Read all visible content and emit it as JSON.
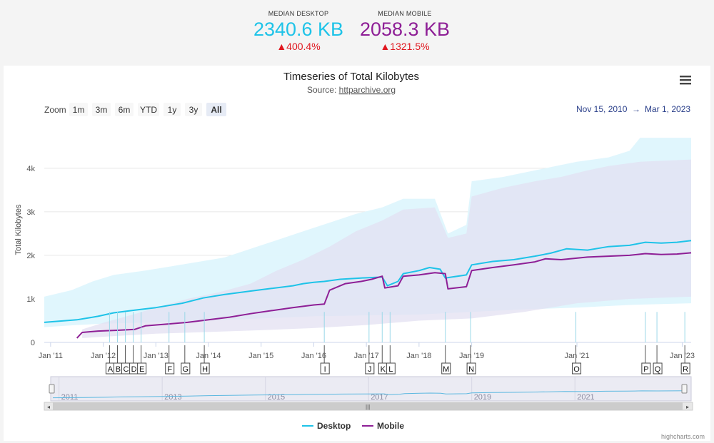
{
  "summary": {
    "desktop": {
      "label": "MEDIAN DESKTOP",
      "value": "2340.6 KB",
      "change": "▲400.4%"
    },
    "mobile": {
      "label": "MEDIAN MOBILE",
      "value": "2058.3 KB",
      "change": "▲1321.5%"
    }
  },
  "toolbar": {
    "zoom_label": "Zoom",
    "zoom_buttons": [
      "1m",
      "3m",
      "6m",
      "YTD",
      "1y",
      "3y",
      "All"
    ],
    "selected": "All",
    "from_date": "Nov 15, 2010",
    "arrow": "→",
    "to_date": "Mar 1, 2023",
    "menu_icon": "hamburger-menu-icon"
  },
  "credit": "highcharts.com",
  "colors": {
    "desktop": "#1ec3e8",
    "mobile": "#8e1f96",
    "desktop_band": "#def6fd",
    "mobile_band": "#e3e0f1",
    "accent": "#2a3f8a"
  },
  "chart_data": {
    "type": "line",
    "title": "Timeseries of Total Kilobytes",
    "subtitle_prefix": "Source: ",
    "subtitle_link": "httparchive.org",
    "ylabel": "Total Kilobytes",
    "ylim": [
      0,
      4800
    ],
    "yticks": [
      0,
      1000,
      2000,
      3000,
      4000
    ],
    "ytick_labels": [
      "0",
      "1k",
      "2k",
      "3k",
      "4k"
    ],
    "xlim": [
      2010.88,
      2023.17
    ],
    "xticks": [
      2011,
      2012,
      2013,
      2014,
      2015,
      2016,
      2017,
      2018,
      2019,
      2021,
      2023
    ],
    "xtick_labels": [
      "Jan '11",
      "Jan '12",
      "Jan '13",
      "Jan '14",
      "Jan '15",
      "Jan '16",
      "Jan '17",
      "Jan '18",
      "Jan '19",
      "Jan '21",
      "Jan '23"
    ],
    "navigator_years": [
      "2011",
      "2013",
      "2015",
      "2017",
      "2019",
      "2021"
    ],
    "series": [
      {
        "name": "Desktop",
        "points": [
          [
            2010.88,
            460
          ],
          [
            2011.5,
            520
          ],
          [
            2011.9,
            600
          ],
          [
            2012.2,
            680
          ],
          [
            2012.6,
            740
          ],
          [
            2013.0,
            800
          ],
          [
            2013.5,
            900
          ],
          [
            2013.9,
            1020
          ],
          [
            2014.3,
            1100
          ],
          [
            2014.8,
            1180
          ],
          [
            2015.2,
            1240
          ],
          [
            2015.6,
            1300
          ],
          [
            2015.8,
            1350
          ],
          [
            2016.0,
            1380
          ],
          [
            2016.2,
            1400
          ],
          [
            2016.5,
            1450
          ],
          [
            2016.9,
            1480
          ],
          [
            2017.3,
            1500
          ],
          [
            2017.4,
            1300
          ],
          [
            2017.6,
            1400
          ],
          [
            2017.7,
            1580
          ],
          [
            2018.0,
            1650
          ],
          [
            2018.2,
            1720
          ],
          [
            2018.4,
            1680
          ],
          [
            2018.5,
            1480
          ],
          [
            2018.9,
            1550
          ],
          [
            2019.0,
            1780
          ],
          [
            2019.4,
            1860
          ],
          [
            2019.8,
            1900
          ],
          [
            2020.2,
            1980
          ],
          [
            2020.5,
            2050
          ],
          [
            2020.8,
            2150
          ],
          [
            2021.2,
            2120
          ],
          [
            2021.6,
            2200
          ],
          [
            2022.0,
            2230
          ],
          [
            2022.3,
            2300
          ],
          [
            2022.6,
            2280
          ],
          [
            2022.9,
            2300
          ],
          [
            2023.17,
            2340
          ]
        ]
      },
      {
        "name": "Mobile",
        "points": [
          [
            2011.5,
            100
          ],
          [
            2011.6,
            230
          ],
          [
            2011.9,
            260
          ],
          [
            2012.3,
            280
          ],
          [
            2012.6,
            300
          ],
          [
            2012.8,
            380
          ],
          [
            2013.2,
            420
          ],
          [
            2013.6,
            460
          ],
          [
            2014.0,
            520
          ],
          [
            2014.4,
            580
          ],
          [
            2014.8,
            660
          ],
          [
            2015.2,
            730
          ],
          [
            2015.6,
            800
          ],
          [
            2016.0,
            860
          ],
          [
            2016.2,
            880
          ],
          [
            2016.3,
            1200
          ],
          [
            2016.6,
            1350
          ],
          [
            2016.9,
            1400
          ],
          [
            2017.1,
            1450
          ],
          [
            2017.3,
            1520
          ],
          [
            2017.35,
            1250
          ],
          [
            2017.6,
            1300
          ],
          [
            2017.7,
            1520
          ],
          [
            2018.0,
            1550
          ],
          [
            2018.3,
            1600
          ],
          [
            2018.5,
            1580
          ],
          [
            2018.55,
            1230
          ],
          [
            2018.9,
            1280
          ],
          [
            2019.0,
            1650
          ],
          [
            2019.4,
            1720
          ],
          [
            2019.8,
            1780
          ],
          [
            2020.2,
            1850
          ],
          [
            2020.4,
            1920
          ],
          [
            2020.7,
            1900
          ],
          [
            2021.2,
            1960
          ],
          [
            2021.6,
            1980
          ],
          [
            2022.0,
            2000
          ],
          [
            2022.3,
            2040
          ],
          [
            2022.6,
            2020
          ],
          [
            2022.9,
            2030
          ],
          [
            2023.17,
            2058
          ]
        ]
      }
    ],
    "bands": [
      {
        "name": "Desktop range",
        "upper": [
          [
            2010.88,
            1050
          ],
          [
            2011.4,
            1200
          ],
          [
            2011.8,
            1400
          ],
          [
            2012.2,
            1550
          ],
          [
            2012.8,
            1650
          ],
          [
            2013.3,
            1750
          ],
          [
            2013.8,
            1850
          ],
          [
            2014.3,
            1950
          ],
          [
            2014.8,
            2150
          ],
          [
            2015.3,
            2350
          ],
          [
            2015.8,
            2550
          ],
          [
            2016.3,
            2750
          ],
          [
            2016.8,
            2950
          ],
          [
            2017.3,
            3100
          ],
          [
            2017.7,
            3300
          ],
          [
            2018.3,
            3300
          ],
          [
            2018.55,
            2500
          ],
          [
            2018.9,
            2700
          ],
          [
            2019.0,
            3700
          ],
          [
            2019.6,
            3800
          ],
          [
            2020.0,
            3900
          ],
          [
            2020.6,
            4050
          ],
          [
            2021.0,
            4150
          ],
          [
            2021.6,
            4250
          ],
          [
            2022.0,
            4400
          ],
          [
            2022.2,
            4700
          ],
          [
            2023.17,
            4700
          ]
        ],
        "lower": [
          [
            2010.88,
            350
          ],
          [
            2011.5,
            400
          ],
          [
            2012.0,
            430
          ],
          [
            2013.0,
            460
          ],
          [
            2014.0,
            500
          ],
          [
            2015.0,
            550
          ],
          [
            2016.0,
            600
          ],
          [
            2017.0,
            620
          ],
          [
            2018.0,
            640
          ],
          [
            2019.0,
            700
          ],
          [
            2020.0,
            760
          ],
          [
            2021.0,
            800
          ],
          [
            2022.0,
            860
          ],
          [
            2023.17,
            900
          ]
        ]
      },
      {
        "name": "Mobile range",
        "upper": [
          [
            2011.6,
            300
          ],
          [
            2012.0,
            450
          ],
          [
            2012.6,
            650
          ],
          [
            2013.0,
            800
          ],
          [
            2013.6,
            1000
          ],
          [
            2014.2,
            1150
          ],
          [
            2014.8,
            1350
          ],
          [
            2015.3,
            1650
          ],
          [
            2015.8,
            1900
          ],
          [
            2016.3,
            2200
          ],
          [
            2016.8,
            2550
          ],
          [
            2017.3,
            2800
          ],
          [
            2017.7,
            3050
          ],
          [
            2018.3,
            3100
          ],
          [
            2018.55,
            2400
          ],
          [
            2018.9,
            2500
          ],
          [
            2019.0,
            3350
          ],
          [
            2019.6,
            3550
          ],
          [
            2020.2,
            3700
          ],
          [
            2020.7,
            3800
          ],
          [
            2021.2,
            3950
          ],
          [
            2021.6,
            4050
          ],
          [
            2022.2,
            4150
          ],
          [
            2023.17,
            4200
          ]
        ],
        "lower": [
          [
            2011.6,
            100
          ],
          [
            2012.3,
            150
          ],
          [
            2013.0,
            200
          ],
          [
            2014.0,
            240
          ],
          [
            2015.0,
            280
          ],
          [
            2016.0,
            330
          ],
          [
            2017.0,
            400
          ],
          [
            2018.0,
            500
          ],
          [
            2019.0,
            550
          ],
          [
            2020.0,
            700
          ],
          [
            2021.0,
            900
          ],
          [
            2022.0,
            1000
          ],
          [
            2023.17,
            1050
          ]
        ]
      }
    ],
    "flags": [
      {
        "label": "A",
        "x": 2012.12
      },
      {
        "label": "B",
        "x": 2012.27
      },
      {
        "label": "C",
        "x": 2012.42
      },
      {
        "label": "D",
        "x": 2012.57
      },
      {
        "label": "E",
        "x": 2012.72
      },
      {
        "label": "F",
        "x": 2013.25
      },
      {
        "label": "G",
        "x": 2013.55
      },
      {
        "label": "H",
        "x": 2013.92
      },
      {
        "label": "I",
        "x": 2016.2
      },
      {
        "label": "J",
        "x": 2017.05
      },
      {
        "label": "K",
        "x": 2017.3
      },
      {
        "label": "L",
        "x": 2017.45
      },
      {
        "label": "M",
        "x": 2018.5
      },
      {
        "label": "N",
        "x": 2018.98
      },
      {
        "label": "O",
        "x": 2020.98
      },
      {
        "label": "P",
        "x": 2022.3
      },
      {
        "label": "Q",
        "x": 2022.52
      },
      {
        "label": "R",
        "x": 2023.05
      }
    ],
    "legend": [
      "Desktop",
      "Mobile"
    ],
    "legend_position": "bottom-center"
  }
}
